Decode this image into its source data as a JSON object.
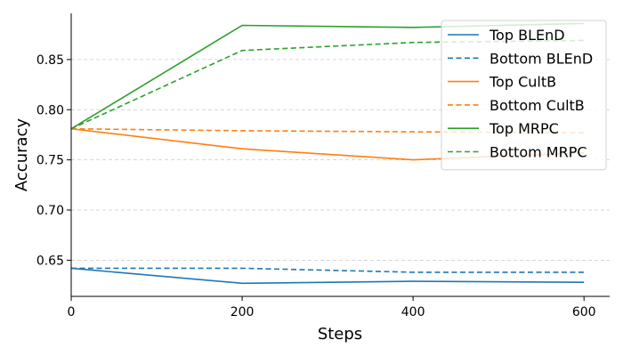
{
  "chart_data": {
    "type": "line",
    "xlabel": "Steps",
    "ylabel": "Accuracy",
    "x": [
      0,
      200,
      400,
      600
    ],
    "xlim": [
      0,
      630
    ],
    "ylim": [
      0.614,
      0.896
    ],
    "xticks": [
      "0",
      "200",
      "400",
      "600"
    ],
    "yticks": [
      "0.65",
      "0.70",
      "0.75",
      "0.80",
      "0.85"
    ],
    "grid": "horizontal dashed",
    "legend_position": "top-right",
    "series": [
      {
        "name": "Top BLEnD",
        "values": [
          0.642,
          0.627,
          0.629,
          0.628
        ],
        "color": "#1f77b4",
        "dash": "solid"
      },
      {
        "name": "Bottom BLEnD",
        "values": [
          0.642,
          0.642,
          0.638,
          0.638
        ],
        "color": "#1f77b4",
        "dash": "dashed"
      },
      {
        "name": "Top CultB",
        "values": [
          0.781,
          0.761,
          0.75,
          0.757
        ],
        "color": "#ff7f0e",
        "dash": "solid"
      },
      {
        "name": "Bottom CultB",
        "values": [
          0.781,
          0.779,
          0.778,
          0.777
        ],
        "color": "#ff7f0e",
        "dash": "dashed"
      },
      {
        "name": "Top MRPC",
        "values": [
          0.781,
          0.884,
          0.882,
          0.886
        ],
        "color": "#2ca02c",
        "dash": "solid"
      },
      {
        "name": "Bottom MRPC",
        "values": [
          0.781,
          0.859,
          0.867,
          0.869
        ],
        "color": "#2ca02c",
        "dash": "dashed"
      }
    ]
  }
}
